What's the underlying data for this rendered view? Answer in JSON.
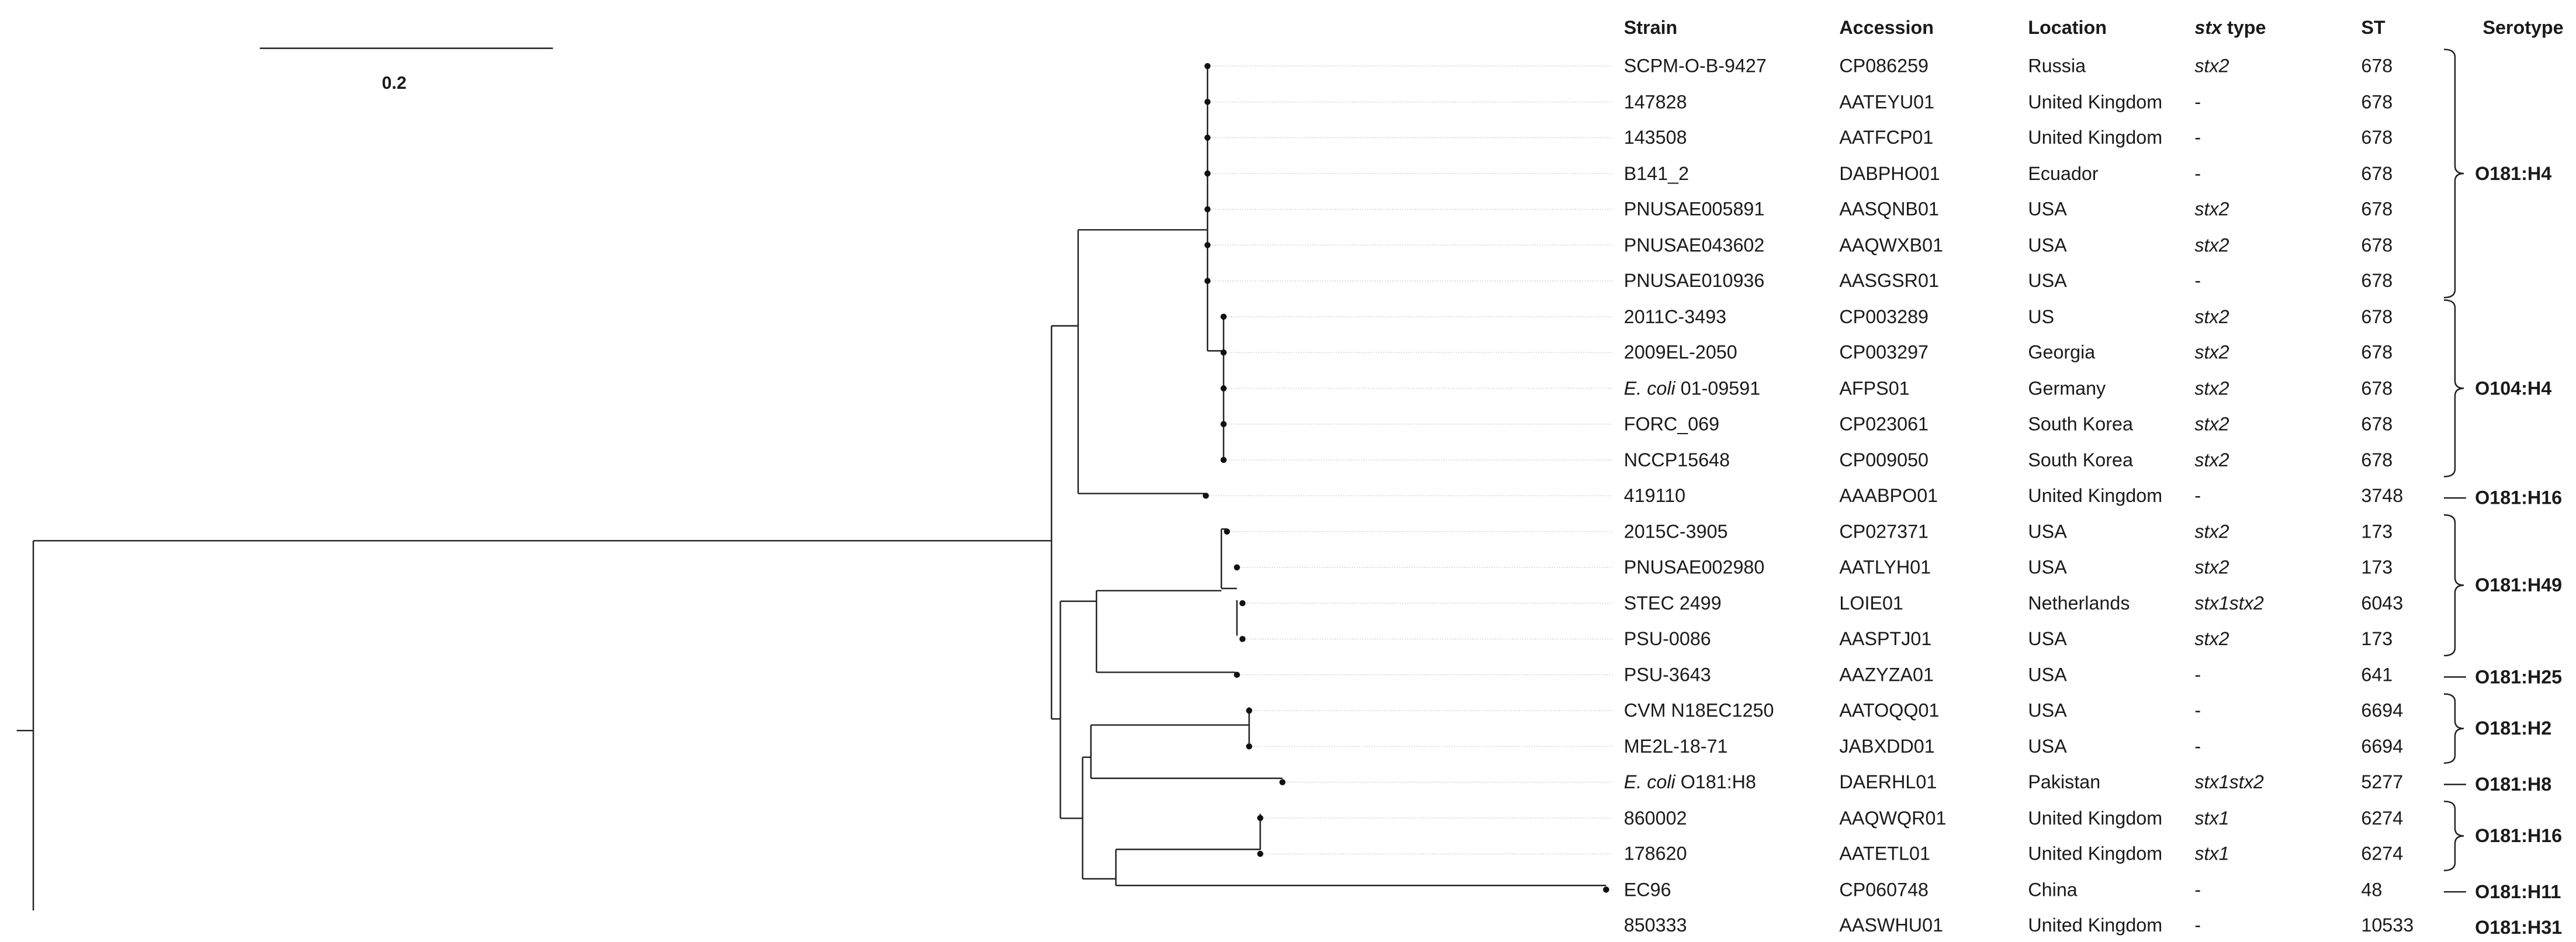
{
  "scale": {
    "label": "0.2"
  },
  "headers": {
    "strain": "Strain",
    "accession": "Accession",
    "location": "Location",
    "stx_prefix": "stx",
    "stx_suffix": " type",
    "st": "ST",
    "serotype": "Serotype"
  },
  "rows": [
    {
      "strain_italic": "",
      "strain": "SCPM-O-B-9427",
      "accession": "CP086259",
      "location": "Russia",
      "stx": "stx2",
      "st": "678"
    },
    {
      "strain_italic": "",
      "strain": "147828",
      "accession": "AATEYU01",
      "location": "United Kingdom",
      "stx": "-",
      "st": "678"
    },
    {
      "strain_italic": "",
      "strain": "143508",
      "accession": "AATFCP01",
      "location": "United Kingdom",
      "stx": "-",
      "st": "678"
    },
    {
      "strain_italic": "",
      "strain": "B141_2",
      "accession": "DABPHO01",
      "location": "Ecuador",
      "stx": "-",
      "st": "678"
    },
    {
      "strain_italic": "",
      "strain": "PNUSAE005891",
      "accession": "AASQNB01",
      "location": "USA",
      "stx": "stx2",
      "st": "678"
    },
    {
      "strain_italic": "",
      "strain": "PNUSAE043602",
      "accession": "AAQWXB01",
      "location": "USA",
      "stx": "stx2",
      "st": "678"
    },
    {
      "strain_italic": "",
      "strain": "PNUSAE010936",
      "accession": "AASGSR01",
      "location": "USA",
      "stx": "-",
      "st": "678"
    },
    {
      "strain_italic": "",
      "strain": "2011C-3493",
      "accession": "CP003289",
      "location": "US",
      "stx": "stx2",
      "st": "678"
    },
    {
      "strain_italic": "",
      "strain": "2009EL-2050",
      "accession": "CP003297",
      "location": "Georgia",
      "stx": "stx2",
      "st": "678"
    },
    {
      "strain_italic": "E. coli",
      "strain": " 01-09591",
      "accession": "AFPS01",
      "location": "Germany",
      "stx": "stx2",
      "st": "678"
    },
    {
      "strain_italic": "",
      "strain": "FORC_069",
      "accession": "CP023061",
      "location": "South Korea",
      "stx": "stx2",
      "st": "678"
    },
    {
      "strain_italic": "",
      "strain": "NCCP15648",
      "accession": "CP009050",
      "location": "South Korea",
      "stx": "stx2",
      "st": "678"
    },
    {
      "strain_italic": "",
      "strain": "419110",
      "accession": "AAABPO01",
      "location": "United Kingdom",
      "stx": "-",
      "st": "3748"
    },
    {
      "strain_italic": "",
      "strain": "2015C-3905",
      "accession": "CP027371",
      "location": "USA",
      "stx": "stx2",
      "st": "173"
    },
    {
      "strain_italic": "",
      "strain": "PNUSAE002980",
      "accession": "AATLYH01",
      "location": "USA",
      "stx": "stx2",
      "st": "173"
    },
    {
      "strain_italic": "",
      "strain": "STEC 2499",
      "accession": "LOIE01",
      "location": "Netherlands",
      "stx": "stx1stx2",
      "st": "6043"
    },
    {
      "strain_italic": "",
      "strain": "PSU-0086",
      "accession": "AASPTJ01",
      "location": "USA",
      "stx": "stx2",
      "st": "173"
    },
    {
      "strain_italic": "",
      "strain": "PSU-3643",
      "accession": "AAZYZA01",
      "location": "USA",
      "stx": "-",
      "st": "641"
    },
    {
      "strain_italic": "",
      "strain": "CVM N18EC1250",
      "accession": "AATOQQ01",
      "location": "USA",
      "stx": "-",
      "st": "6694"
    },
    {
      "strain_italic": "",
      "strain": "ME2L-18-71",
      "accession": "JABXDD01",
      "location": "USA",
      "stx": "-",
      "st": "6694"
    },
    {
      "strain_italic": "E. coli",
      "strain": " O181:H8",
      "accession": "DAERHL01",
      "location": "Pakistan",
      "stx": "stx1stx2",
      "st": "5277"
    },
    {
      "strain_italic": "",
      "strain": "860002",
      "accession": "AAQWQR01",
      "location": "United Kingdom",
      "stx": "stx1",
      "st": "6274"
    },
    {
      "strain_italic": "",
      "strain": "178620",
      "accession": "AATETL01",
      "location": "United Kingdom",
      "stx": "stx1",
      "st": "6274"
    },
    {
      "strain_italic": "",
      "strain": "EC96",
      "accession": "CP060748",
      "location": "China",
      "stx": "-",
      "st": "48"
    },
    {
      "strain_italic": "",
      "strain": "850333",
      "accession": "AASWHU01",
      "location": "United Kingdom",
      "stx": "-",
      "st": "10533"
    }
  ],
  "serotypes": [
    {
      "label": "O181:H4",
      "first_row": 0,
      "last_row": 6
    },
    {
      "label": "O104:H4",
      "first_row": 7,
      "last_row": 11
    },
    {
      "label": "O181:H16",
      "first_row": 12,
      "last_row": 12
    },
    {
      "label": "O181:H49",
      "first_row": 13,
      "last_row": 16
    },
    {
      "label": "O181:H25",
      "first_row": 17,
      "last_row": 17
    },
    {
      "label": "O181:H2",
      "first_row": 18,
      "last_row": 19
    },
    {
      "label": "O181:H8",
      "first_row": 20,
      "last_row": 20
    },
    {
      "label": "O181:H16",
      "first_row": 21,
      "last_row": 22
    },
    {
      "label": "O181:H11",
      "first_row": 23,
      "last_row": 23
    },
    {
      "label": "O181:H31",
      "first_row": 24,
      "last_row": 24
    }
  ]
}
